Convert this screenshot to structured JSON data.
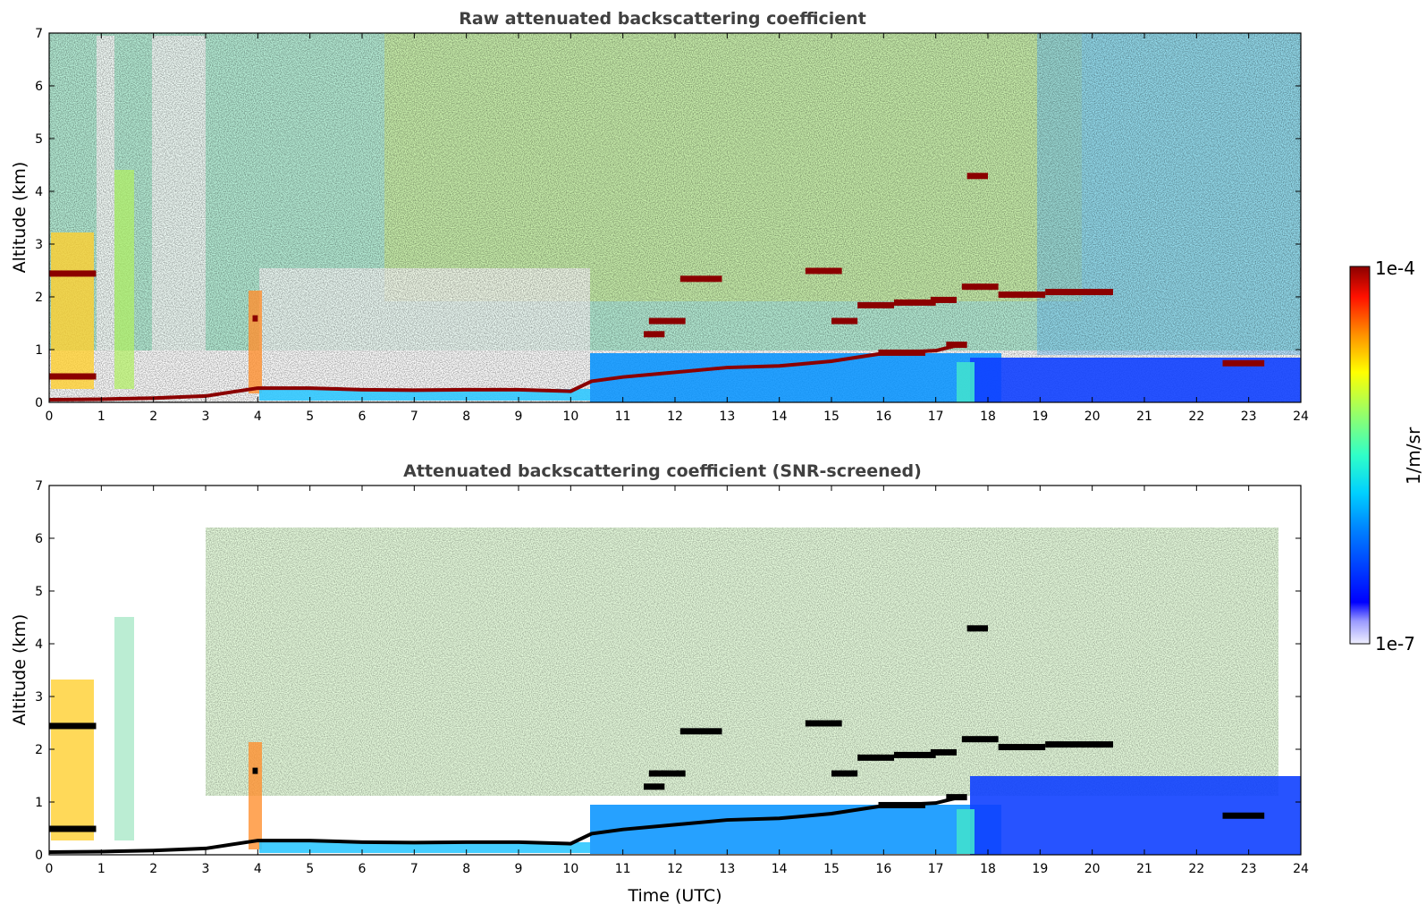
{
  "chart_data": [
    {
      "type": "heatmap",
      "title": "Raw attenuated backscattering coefficient",
      "xlabel": "",
      "ylabel": "Altitude (km)",
      "xlim": [
        0,
        24
      ],
      "ylim": [
        0,
        7
      ],
      "xticks": [
        "0",
        "1",
        "2",
        "3",
        "4",
        "5",
        "6",
        "7",
        "8",
        "9",
        "10",
        "11",
        "12",
        "13",
        "14",
        "15",
        "16",
        "17",
        "18",
        "19",
        "20",
        "21",
        "22",
        "23",
        "24"
      ],
      "yticks": [
        "0",
        "1",
        "2",
        "3",
        "4",
        "5",
        "6",
        "7"
      ],
      "screened": false,
      "layers": [
        {
          "name": "boundary-layer-top",
          "points": [
            [
              0,
              0.05
            ],
            [
              1,
              0.06
            ],
            [
              2,
              0.08
            ],
            [
              3,
              0.12
            ],
            [
              4,
              0.27
            ],
            [
              5,
              0.27
            ],
            [
              6,
              0.24
            ],
            [
              7,
              0.23
            ],
            [
              8,
              0.24
            ],
            [
              9,
              0.24
            ],
            [
              10,
              0.21
            ],
            [
              10.4,
              0.4
            ],
            [
              11,
              0.48
            ],
            [
              12,
              0.57
            ],
            [
              13,
              0.66
            ],
            [
              14,
              0.69
            ],
            [
              15,
              0.78
            ],
            [
              16,
              0.93
            ],
            [
              17,
              0.98
            ],
            [
              17.5,
              1.1
            ]
          ]
        },
        {
          "name": "cloud-layers",
          "segments": [
            [
              0,
              0.9,
              2.45
            ],
            [
              0,
              0.9,
              0.5
            ],
            [
              3.9,
              4.0,
              1.6
            ],
            [
              11.5,
              12.2,
              1.55
            ],
            [
              11.4,
              11.8,
              1.3
            ],
            [
              12.1,
              12.9,
              2.35
            ],
            [
              14.5,
              15.2,
              2.5
            ],
            [
              15.0,
              15.5,
              1.55
            ],
            [
              15.5,
              16.2,
              1.85
            ],
            [
              16.2,
              17,
              1.9
            ],
            [
              16.9,
              17.4,
              1.95
            ],
            [
              17.5,
              18.2,
              2.2
            ],
            [
              18.2,
              19.1,
              2.05
            ],
            [
              19.1,
              20.4,
              2.1
            ],
            [
              17.6,
              18.0,
              4.3
            ],
            [
              15.9,
              16.8,
              0.95
            ],
            [
              17.2,
              17.6,
              1.1
            ],
            [
              22.5,
              23.3,
              0.75
            ]
          ]
        }
      ]
    },
    {
      "type": "heatmap",
      "title": "Attenuated backscattering coefficient (SNR-screened)",
      "xlabel": "Time (UTC)",
      "ylabel": "Altitude (km)",
      "xlim": [
        0,
        24
      ],
      "ylim": [
        0,
        7
      ],
      "xticks": [
        "0",
        "1",
        "2",
        "3",
        "4",
        "5",
        "6",
        "7",
        "8",
        "9",
        "10",
        "11",
        "12",
        "13",
        "14",
        "15",
        "16",
        "17",
        "18",
        "19",
        "20",
        "21",
        "22",
        "23",
        "24"
      ],
      "yticks": [
        "0",
        "1",
        "2",
        "3",
        "4",
        "5",
        "6",
        "7"
      ],
      "screened": true
    }
  ],
  "colorbar": {
    "label": "1/m/sr",
    "max_label": "1e-4",
    "min_label": "1e-7",
    "colormap": "jet",
    "scale": "log"
  },
  "colors": {
    "title": "#404040",
    "cloud": "#8b0000",
    "screened_cloud": "#000000"
  }
}
